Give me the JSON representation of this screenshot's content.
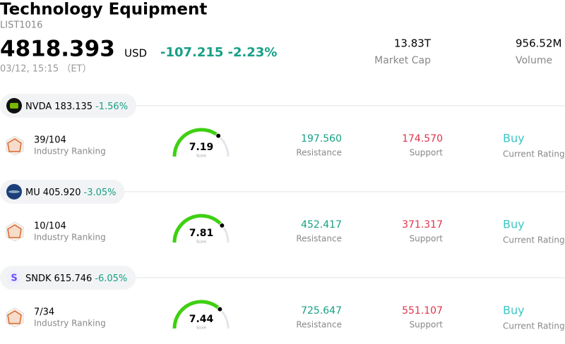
{
  "header": {
    "title": "Technology Equipment",
    "code": "LIST1016",
    "price": "4818.393",
    "currency": "USD",
    "change": "-107.215",
    "change_pct": "-2.23%",
    "datetime": "03/12, 15:15 （ET）",
    "market_cap": "13.83T",
    "market_cap_label": "Market Cap",
    "volume": "956.52M",
    "volume_label": "Volume"
  },
  "stocks": [
    {
      "ticker": "NVDA",
      "price": "183.135",
      "change_pct": "-1.56%",
      "rank": "39/104",
      "rank_label": "Industry Ranking",
      "score": 7.19,
      "score_label": "Score",
      "resistance": "197.560",
      "resistance_label": "Resistance",
      "support": "174.570",
      "support_label": "Support",
      "rating": "Buy",
      "rating_label": "Current Rating"
    },
    {
      "ticker": "MU",
      "price": "405.920",
      "change_pct": "-3.05%",
      "rank": "10/104",
      "rank_label": "Industry Ranking",
      "score": 7.81,
      "score_label": "Score",
      "resistance": "452.417",
      "resistance_label": "Resistance",
      "support": "371.317",
      "support_label": "Support",
      "rating": "Buy",
      "rating_label": "Current Rating"
    },
    {
      "ticker": "SNDK",
      "logo_text": "S",
      "price": "615.746",
      "change_pct": "-6.05%",
      "rank": "7/34",
      "rank_label": "Industry Ranking",
      "score": 7.44,
      "score_label": "Score",
      "resistance": "725.647",
      "resistance_label": "Resistance",
      "support": "551.107",
      "support_label": "Support",
      "rating": "Buy",
      "rating_label": "Current Rating"
    }
  ]
}
